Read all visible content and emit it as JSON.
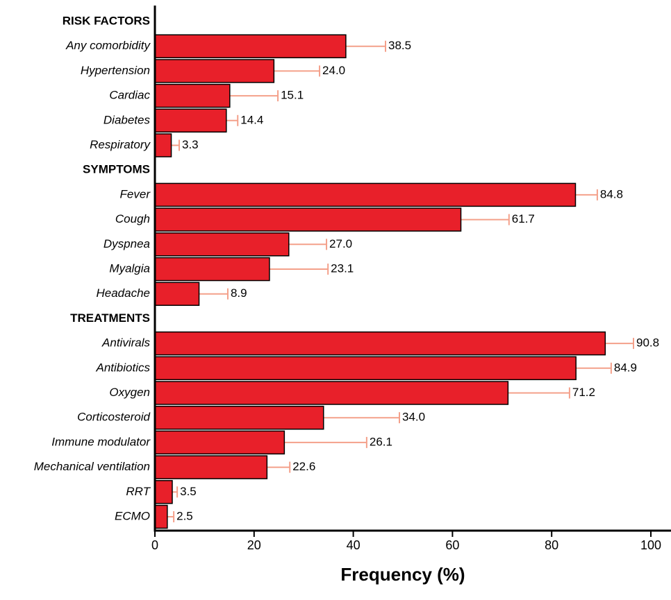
{
  "chart_data": {
    "type": "bar",
    "orientation": "horizontal",
    "xlabel": "Frequency (%)",
    "xlim": [
      0,
      100
    ],
    "xticks": [
      0,
      20,
      40,
      60,
      80,
      100
    ],
    "bar_color": "#e8202a",
    "error_color": "#f4a08a",
    "groups": [
      {
        "name": "RISK FACTORS",
        "categories": [
          "Any comorbidity",
          "Hypertension",
          "Cardiac",
          "Diabetes",
          "Respiratory"
        ],
        "values": [
          38.5,
          24.0,
          15.1,
          14.4,
          3.3
        ],
        "value_labels": [
          "38.5",
          "24.0",
          "15.1",
          "14.4",
          "3.3"
        ],
        "errors": [
          8.0,
          9.2,
          9.7,
          2.3,
          1.6
        ]
      },
      {
        "name": "SYMPTOMS",
        "categories": [
          "Fever",
          "Cough",
          "Dyspnea",
          "Myalgia",
          "Headache"
        ],
        "values": [
          84.8,
          61.7,
          27.0,
          23.1,
          8.9
        ],
        "value_labels": [
          "84.8",
          "61.7",
          "27.0",
          "23.1",
          "8.9"
        ],
        "errors": [
          4.4,
          9.7,
          7.6,
          11.8,
          5.8
        ]
      },
      {
        "name": "TREATMENTS",
        "categories": [
          "Antivirals",
          "Antibiotics",
          "Oxygen",
          "Corticosteroid",
          "Immune modulator",
          "Mechanical ventilation",
          "RRT",
          "ECMO"
        ],
        "values": [
          90.8,
          84.9,
          71.2,
          34.0,
          26.1,
          22.6,
          3.5,
          2.5
        ],
        "value_labels": [
          "90.8",
          "84.9",
          "71.2",
          "34.0",
          "26.1",
          "22.6",
          "3.5",
          "2.5"
        ],
        "errors": [
          5.7,
          7.1,
          12.4,
          15.3,
          16.6,
          4.6,
          1.0,
          1.3
        ]
      }
    ]
  }
}
